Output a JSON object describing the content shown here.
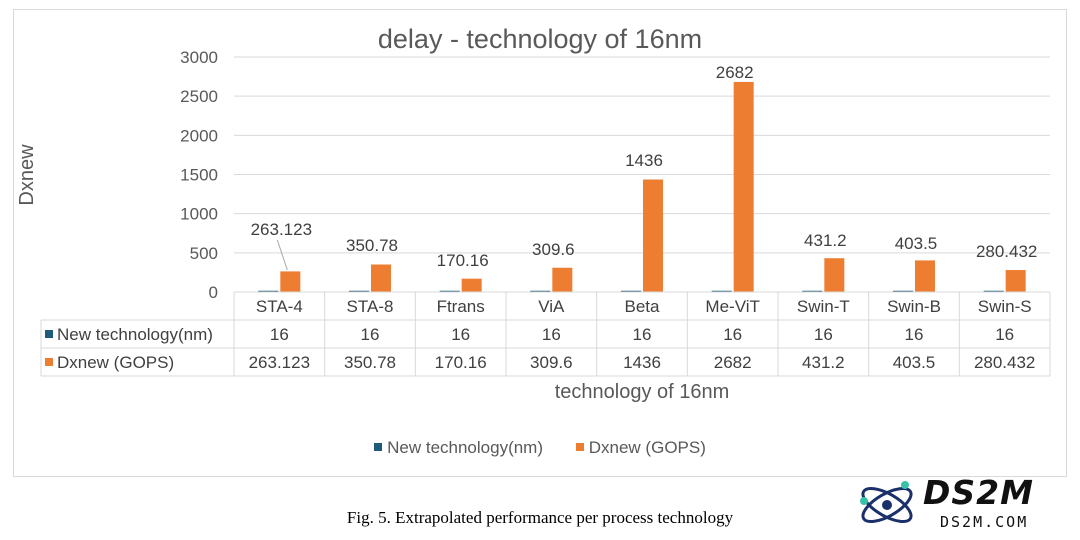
{
  "chart_data": {
    "type": "bar",
    "title": "delay - technology of 16nm",
    "ylabel": "Dxnew",
    "xlabel": "technology of 16nm",
    "ylim": [
      0,
      3000
    ],
    "yticks": [
      0,
      500,
      1000,
      1500,
      2000,
      2500,
      3000
    ],
    "grid": true,
    "legend_position": "bottom",
    "categories": [
      "STA-4",
      "STA-8",
      "Ftrans",
      "ViA",
      "Beta",
      "Me-ViT",
      "Swin-T",
      "Swin-B",
      "Swin-S"
    ],
    "series": [
      {
        "name": "New technology(nm)",
        "color": "#1f5c7a",
        "values": [
          16,
          16,
          16,
          16,
          16,
          16,
          16,
          16,
          16
        ]
      },
      {
        "name": "Dxnew (GOPS)",
        "color": "#ed7d31",
        "values": [
          263.123,
          350.78,
          170.16,
          309.6,
          1436,
          2682,
          431.2,
          403.5,
          280.432
        ]
      }
    ],
    "data_labels": [
      "263.123",
      "350.78",
      "170.16",
      "309.6",
      "1436",
      "2682",
      "431.2",
      "403.5",
      "280.432"
    ],
    "table_rows": [
      {
        "label": "New technology(nm)",
        "cells": [
          "16",
          "16",
          "16",
          "16",
          "16",
          "16",
          "16",
          "16",
          "16"
        ]
      },
      {
        "label": "Dxnew (GOPS)",
        "cells": [
          "263.123",
          "350.78",
          "170.16",
          "309.6",
          "1436",
          "2682",
          "431.2",
          "403.5",
          "280.432"
        ]
      }
    ]
  },
  "caption": "Fig. 5.  Extrapolated performance per process technology",
  "watermark": {
    "text": "DS2M",
    "sub": "DS2M.COM"
  }
}
